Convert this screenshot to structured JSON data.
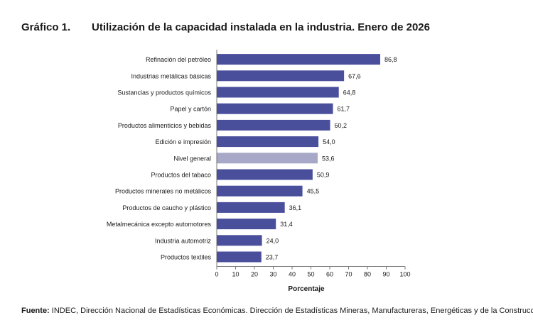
{
  "figure": {
    "label": "Gráfico 1.",
    "title": "Utilización de la capacidad instalada en la industria. Enero de 2026"
  },
  "source": {
    "prefix": "Fuente:",
    "text": "INDEC, Dirección Nacional de Estadísticas Económicas. Dirección de Estadísticas Mineras, Manufactureras, Energéticas y de la Construcción."
  },
  "chart_data": {
    "type": "bar",
    "orientation": "horizontal",
    "title": "Utilización de la capacidad instalada en la industria. Enero de 2026",
    "xlabel": "Porcentaje",
    "ylabel": "",
    "xlim": [
      0,
      100
    ],
    "xticks": [
      "0",
      "10",
      "20",
      "30",
      "40",
      "50",
      "60",
      "70",
      "80",
      "90",
      "100"
    ],
    "categories": [
      "Refinación del petróleo",
      "Industrias metálicas básicas",
      "Sustancias y productos químicos",
      "Papel y cartón",
      "Productos alimenticios y bebidas",
      "Edición e impresión",
      "Nivel general",
      "Productos del tabaco",
      "Productos minerales no metálicos",
      "Productos de caucho y plástico",
      "Metalmecánica excepto automotores",
      "Industria automotriz",
      "Productos textiles"
    ],
    "values": [
      86.8,
      67.6,
      64.8,
      61.7,
      60.2,
      54.0,
      53.6,
      50.9,
      45.5,
      36.1,
      31.4,
      24.0,
      23.7
    ],
    "value_labels": [
      "86,8",
      "67,6",
      "64,8",
      "61,7",
      "60,2",
      "54,0",
      "53,6",
      "50,9",
      "45,5",
      "36,1",
      "31,4",
      "24,0",
      "23,7"
    ],
    "highlight": "Nivel general",
    "colors": {
      "bar": "#4a4f9c",
      "highlight": "#a7a8c8",
      "axis": "#555555"
    }
  }
}
